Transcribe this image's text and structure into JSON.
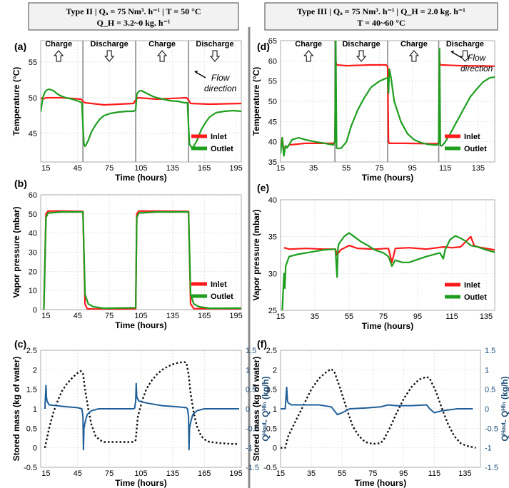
{
  "headers": {
    "left_line1": "Type II | Qₐ = 75 Nm³. h⁻¹ | T = 50 °C",
    "left_line2": "Q_H = 3.2~0 kg. h⁻¹",
    "right_line1": "Type III | Qₐ = 75 Nm³. h⁻¹ | Q_H = 2.0 kg. h⁻¹",
    "right_line2": "T = 40~60 °C"
  },
  "phase_labels": {
    "charge": "Charge",
    "discharge": "Discharge"
  },
  "annotation": "Flow\ndirection",
  "colors": {
    "inlet": "#ff1a1a",
    "outlet": "#1e9e1e",
    "mass": "#111111",
    "flow": "#1f5f99"
  },
  "chart_data": [
    {
      "id": "a",
      "panel_label": "(a)",
      "type": "line",
      "xlabel": "Time (hours)",
      "ylabel": "Temperature (°C)",
      "xlim": [
        10,
        200
      ],
      "ylim": [
        41,
        58
      ],
      "xticks": [
        "15",
        "45",
        "75",
        "105",
        "135",
        "165",
        "195"
      ],
      "yticks": [
        "45",
        "50",
        "55"
      ],
      "phase_dividers": [
        50,
        100,
        150
      ],
      "phases": [
        {
          "label": "Charge",
          "x": 27
        },
        {
          "label": "Discharge",
          "x": 75
        },
        {
          "label": "Charge",
          "x": 125
        },
        {
          "label": "Discharge",
          "x": 175
        }
      ],
      "legend": [
        "Inlet",
        "Outlet"
      ],
      "series": [
        {
          "name": "Inlet",
          "x": [
            10,
            12,
            15,
            30,
            48,
            50,
            52,
            70,
            98,
            100,
            102,
            120,
            148,
            150,
            152,
            170,
            200
          ],
          "y": [
            50,
            49.8,
            50,
            50,
            49.8,
            49.5,
            49.3,
            49,
            49.2,
            49.7,
            50,
            49.8,
            50,
            49.7,
            49.2,
            49.1,
            49.2
          ]
        },
        {
          "name": "Outlet",
          "x": [
            10,
            12,
            14,
            16,
            18,
            22,
            26,
            30,
            34,
            40,
            46,
            49,
            50,
            51,
            52,
            53,
            55,
            58,
            62,
            66,
            70,
            76,
            84,
            92,
            98,
            100,
            101,
            103,
            105,
            108,
            112,
            116,
            120,
            126,
            132,
            140,
            146,
            149,
            150,
            151,
            153,
            155,
            158,
            162,
            166,
            170,
            176,
            184,
            192,
            200
          ],
          "y": [
            48,
            50,
            50.8,
            51.1,
            51.2,
            51,
            50.5,
            50.2,
            50,
            49.8,
            49.5,
            49.3,
            46,
            43.5,
            43.2,
            43.4,
            44,
            45.2,
            46.2,
            47,
            47.5,
            47.8,
            48,
            48.1,
            48.1,
            48.3,
            50.5,
            50.9,
            51,
            50.8,
            50.5,
            50.2,
            50,
            49.8,
            49.6,
            49.5,
            49.3,
            49.3,
            46,
            43.5,
            43,
            43.2,
            44,
            45.5,
            46.5,
            47.3,
            47.9,
            48.1,
            48.2,
            48.1
          ]
        }
      ]
    },
    {
      "id": "b",
      "panel_label": "(b)",
      "type": "line",
      "xlabel": "Time (hours)",
      "ylabel": "Vapor pressure (mbar)",
      "xlim": [
        10,
        200
      ],
      "ylim": [
        0,
        60
      ],
      "xticks": [
        "15",
        "45",
        "75",
        "105",
        "135",
        "165",
        "195"
      ],
      "yticks": [
        "0",
        "10",
        "20",
        "30",
        "40",
        "50",
        "60"
      ],
      "legend": [
        "Inlet",
        "Outlet"
      ],
      "series": [
        {
          "name": "Inlet",
          "x": [
            13,
            15,
            17,
            30,
            50,
            52,
            54,
            60,
            100,
            101,
            103,
            120,
            150,
            152,
            155,
            200
          ],
          "y": [
            0,
            50,
            51.5,
            51.5,
            51.3,
            3,
            0.5,
            0.3,
            0.5,
            50,
            51.5,
            51.5,
            51.3,
            3,
            0.5,
            0.5
          ]
        },
        {
          "name": "Outlet",
          "x": [
            13,
            15,
            17,
            30,
            50,
            52,
            55,
            60,
            70,
            100,
            101,
            103,
            120,
            150,
            152,
            155,
            160,
            170,
            200
          ],
          "y": [
            0,
            48,
            50.5,
            51,
            51,
            8,
            3,
            1.5,
            0.7,
            1,
            48,
            50.5,
            51,
            51,
            8,
            3,
            1.5,
            0.7,
            0.8
          ]
        }
      ]
    },
    {
      "id": "c",
      "panel_label": "(c)",
      "type": "line",
      "xlabel": "Time (hours)",
      "ylabel": "Stored mass (kg of water)",
      "ylabel_right": "Qᴴᵒᵘᵗ- Qᴴⁱⁿ (kg/h)",
      "xlim": [
        10,
        200
      ],
      "ylim": [
        -0.5,
        2.5
      ],
      "ylim_right": [
        -1.5,
        1.5
      ],
      "xticks": [
        "15",
        "45",
        "75",
        "105",
        "135",
        "165",
        "195"
      ],
      "yticks": [
        "-0.5",
        "0",
        "0.5",
        "1",
        "1.5",
        "2",
        "2.5"
      ],
      "yticks_right": [
        "-1.5",
        "-1",
        "-0.5",
        "0",
        "0.5",
        "1",
        "1.5"
      ],
      "series": [
        {
          "name": "Stored mass",
          "axis": "left",
          "dashed": true,
          "x": [
            14,
            18,
            22,
            26,
            30,
            35,
            40,
            45,
            48,
            50,
            52,
            55,
            58,
            62,
            66,
            70,
            80,
            90,
            98,
            100,
            102,
            106,
            110,
            115,
            120,
            125,
            130,
            135,
            140,
            146,
            148,
            150,
            152,
            155,
            158,
            162,
            166,
            170,
            180,
            190,
            198
          ],
          "y": [
            0,
            0.5,
            0.9,
            1.2,
            1.45,
            1.65,
            1.8,
            1.92,
            1.97,
            1.9,
            1.5,
            1,
            0.6,
            0.3,
            0.2,
            0.15,
            0.15,
            0.15,
            0.15,
            0.2,
            0.8,
            1.2,
            1.5,
            1.72,
            1.88,
            2,
            2.08,
            2.14,
            2.18,
            2.2,
            2.18,
            1.9,
            1.4,
            0.9,
            0.55,
            0.3,
            0.2,
            0.15,
            0.12,
            0.1,
            0.1
          ]
        },
        {
          "name": "Flow difference",
          "axis": "right",
          "x": [
            14,
            15,
            15.5,
            16,
            18,
            25,
            35,
            45,
            49,
            50,
            50.5,
            51,
            52,
            54,
            58,
            65,
            80,
            98,
            99,
            100,
            100.5,
            101,
            103,
            110,
            125,
            140,
            148,
            149,
            150,
            150.5,
            151,
            152,
            154,
            158,
            165,
            180,
            198
          ],
          "y": [
            0,
            0.6,
            0.3,
            0.2,
            0.1,
            0.08,
            0.05,
            0.03,
            0,
            -0.2,
            -1.05,
            -0.5,
            -0.35,
            -0.15,
            -0.05,
            0,
            0,
            0,
            0.02,
            0.2,
            0.65,
            0.3,
            0.2,
            0.15,
            0.08,
            0.05,
            0.03,
            0,
            -0.2,
            -1.05,
            -0.5,
            -0.35,
            -0.15,
            -0.05,
            0,
            0,
            0
          ]
        }
      ]
    },
    {
      "id": "d",
      "panel_label": "(d)",
      "type": "line",
      "xlabel": "Time (hours)",
      "ylabel": "Temperature (°C)",
      "xlim": [
        15,
        145
      ],
      "ylim": [
        35,
        65
      ],
      "xticks": [
        "15",
        "35",
        "55",
        "75",
        "95",
        "115",
        "135"
      ],
      "yticks": [
        "35",
        "40",
        "45",
        "50",
        "55",
        "60",
        "65"
      ],
      "phase_dividers": [
        48,
        80,
        111
      ],
      "phases": [
        {
          "label": "Charge",
          "x": 32
        },
        {
          "label": "Discharge",
          "x": 64
        },
        {
          "label": "Charge",
          "x": 96
        },
        {
          "label": "Discharge",
          "x": 127
        }
      ],
      "legend": [
        "Inlet",
        "Outlet"
      ],
      "series": [
        {
          "name": "Inlet",
          "x": [
            15,
            16,
            17,
            18,
            19,
            20,
            30,
            47,
            48,
            48.5,
            49,
            55,
            70,
            79,
            80,
            80.5,
            81,
            90,
            110,
            111,
            111.5,
            112,
            125,
            145
          ],
          "y": [
            38,
            41,
            37.5,
            39,
            38.5,
            39.2,
            39.6,
            39.6,
            40,
            60,
            59,
            58.8,
            59,
            59,
            58.6,
            40,
            39.6,
            39.6,
            39.5,
            39.8,
            60,
            59,
            58.8,
            58.7
          ]
        },
        {
          "name": "Outlet",
          "x": [
            15,
            16,
            17,
            18,
            19,
            22,
            26,
            30,
            36,
            42,
            47,
            48,
            48.5,
            49,
            50,
            52,
            55,
            58,
            62,
            66,
            70,
            75,
            79,
            80,
            80.5,
            81,
            82,
            84,
            88,
            92,
            96,
            100,
            104,
            108,
            110,
            111,
            111.5,
            112,
            113,
            115,
            118,
            122,
            126,
            130,
            134,
            138,
            142,
            145
          ],
          "y": [
            37,
            41,
            36.5,
            39,
            38.5,
            40.5,
            41,
            40.5,
            40,
            39.6,
            39.2,
            40,
            65,
            38.5,
            38.3,
            38.5,
            40,
            44,
            48,
            51,
            53.5,
            55,
            55.7,
            55.8,
            52,
            58,
            56,
            50,
            45,
            42,
            40.5,
            39.8,
            39.4,
            39.2,
            39.2,
            39.5,
            63,
            39,
            39,
            40,
            42,
            45,
            48,
            51,
            53,
            54.8,
            55.8,
            56
          ]
        }
      ]
    },
    {
      "id": "e",
      "panel_label": "(e)",
      "type": "line",
      "xlabel": "Time (hours)",
      "ylabel": "Vapor pressure (mbar)",
      "xlim": [
        15,
        140
      ],
      "ylim": [
        25,
        40
      ],
      "xticks": [
        "15",
        "35",
        "55",
        "75",
        "95",
        "115",
        "135"
      ],
      "yticks": [
        "25",
        "30",
        "35",
        "40"
      ],
      "legend": [
        "Inlet",
        "Outlet"
      ],
      "series": [
        {
          "name": "Inlet",
          "x": [
            17,
            20,
            30,
            40,
            47,
            48,
            50,
            55,
            60,
            70,
            78,
            80,
            82,
            90,
            100,
            110,
            115,
            120,
            126,
            128,
            130,
            135,
            140
          ],
          "y": [
            33.5,
            33.3,
            33.4,
            33.3,
            33.3,
            32.5,
            33.2,
            33.8,
            33.4,
            33.3,
            33.4,
            31.5,
            33.4,
            33.5,
            33.3,
            33.6,
            33.5,
            33.6,
            35,
            33.8,
            33.6,
            33.4,
            33.2
          ]
        },
        {
          "name": "Outlet",
          "x": [
            16,
            17,
            17.5,
            18,
            20,
            25,
            30,
            40,
            47,
            48,
            48.5,
            49,
            52,
            55,
            58,
            62,
            66,
            70,
            75,
            78,
            80,
            82,
            86,
            90,
            100,
            108,
            110,
            111,
            114,
            117,
            120,
            123,
            126,
            130,
            135,
            140
          ],
          "y": [
            25,
            30,
            28,
            31,
            32.3,
            32.6,
            32.8,
            33.2,
            33.3,
            29.5,
            33.5,
            34,
            35,
            35.5,
            35,
            34.3,
            33.8,
            33.2,
            32.8,
            32.3,
            31,
            31.8,
            31.5,
            31.5,
            32.3,
            32.8,
            32,
            33.2,
            34.6,
            35.1,
            34.8,
            34.4,
            33.8,
            33.6,
            33.2,
            32.9
          ]
        }
      ]
    },
    {
      "id": "f",
      "panel_label": "(f)",
      "type": "line",
      "xlabel": "Time (hours)",
      "ylabel": "Stored mass (kg of water)",
      "ylabel_right": "Qᴴᵒᵘᵗ- Qᴴⁱⁿ (kg/h)",
      "xlim": [
        15,
        145
      ],
      "ylim": [
        -0.5,
        2.5
      ],
      "ylim_right": [
        -1.5,
        1.5
      ],
      "xticks": [
        "15",
        "35",
        "55",
        "75",
        "95",
        "115",
        "135"
      ],
      "yticks": [
        "-0.5",
        "0",
        "0.5",
        "1",
        "1.5",
        "2",
        "2.5"
      ],
      "yticks_right": [
        "-1.5",
        "-1",
        "-0.5",
        "0",
        "0.5",
        "1",
        "1.5"
      ],
      "series": [
        {
          "name": "Stored mass",
          "axis": "left",
          "dashed": true,
          "x": [
            15,
            18,
            20,
            25,
            30,
            35,
            40,
            45,
            48,
            50,
            54,
            58,
            62,
            66,
            70,
            75,
            80,
            82,
            86,
            90,
            95,
            100,
            105,
            110,
            112,
            116,
            120,
            124,
            128,
            132,
            136,
            142
          ],
          "y": [
            0,
            0,
            0.3,
            0.7,
            1.1,
            1.5,
            1.78,
            1.95,
            2.02,
            1.95,
            1.5,
            1,
            0.55,
            0.3,
            0.15,
            0.1,
            0.12,
            0.2,
            0.5,
            0.85,
            1.25,
            1.55,
            1.75,
            1.82,
            1.78,
            1.45,
            1,
            0.6,
            0.3,
            0.12,
            0.05,
            0
          ]
        },
        {
          "name": "Flow difference",
          "axis": "right",
          "x": [
            15,
            18,
            19,
            19.5,
            20,
            22,
            30,
            40,
            48,
            50,
            52,
            55,
            60,
            70,
            80,
            85,
            90,
            100,
            110,
            112,
            115,
            120,
            130,
            140
          ],
          "y": [
            0,
            0,
            0.55,
            0.2,
            0.15,
            0.1,
            0.1,
            0.1,
            0.05,
            -0.05,
            -0.15,
            -0.1,
            0,
            0.02,
            0.05,
            0.1,
            0.08,
            0.08,
            0.1,
            0,
            -0.1,
            -0.05,
            0,
            0
          ]
        }
      ]
    }
  ]
}
